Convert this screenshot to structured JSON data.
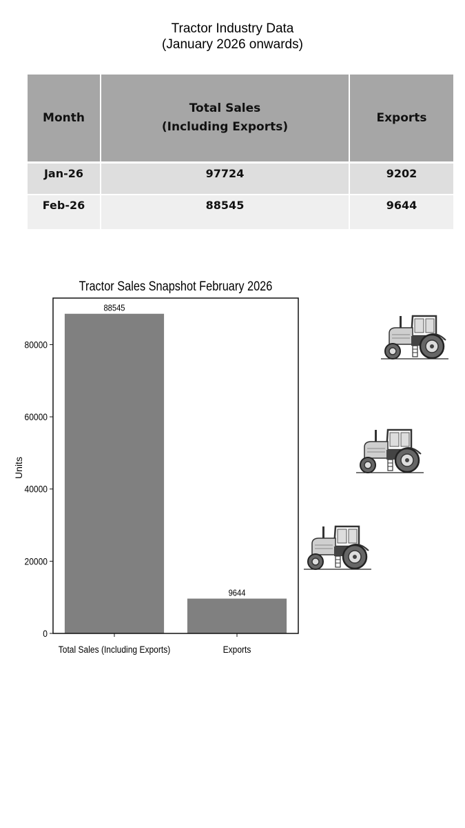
{
  "header": {
    "title_line1": "Tractor Industry Data",
    "title_line2": "(January 2026 onwards)"
  },
  "table": {
    "columns": [
      "Month",
      "Total Sales",
      "(Including Exports)",
      "Exports"
    ],
    "rows": [
      {
        "month": "Jan-26",
        "total": "97724",
        "exports": "9202"
      },
      {
        "month": "Feb-26",
        "total": "88545",
        "exports": "9644"
      }
    ]
  },
  "chart_data": {
    "type": "bar",
    "title": "Tractor Sales Snapshot February 2026",
    "xlabel": "",
    "ylabel": "Units",
    "categories": [
      "Total Sales (Including Exports)",
      "Exports"
    ],
    "values": [
      88545,
      9644
    ],
    "data_labels": [
      "88545",
      "9644"
    ],
    "ylim": [
      0,
      92890
    ],
    "yticks": [
      0,
      20000,
      40000,
      60000,
      80000
    ],
    "grid": false,
    "bar_color": "#808080"
  },
  "decorations": {
    "icon": "tractor-icon",
    "count": 3
  }
}
